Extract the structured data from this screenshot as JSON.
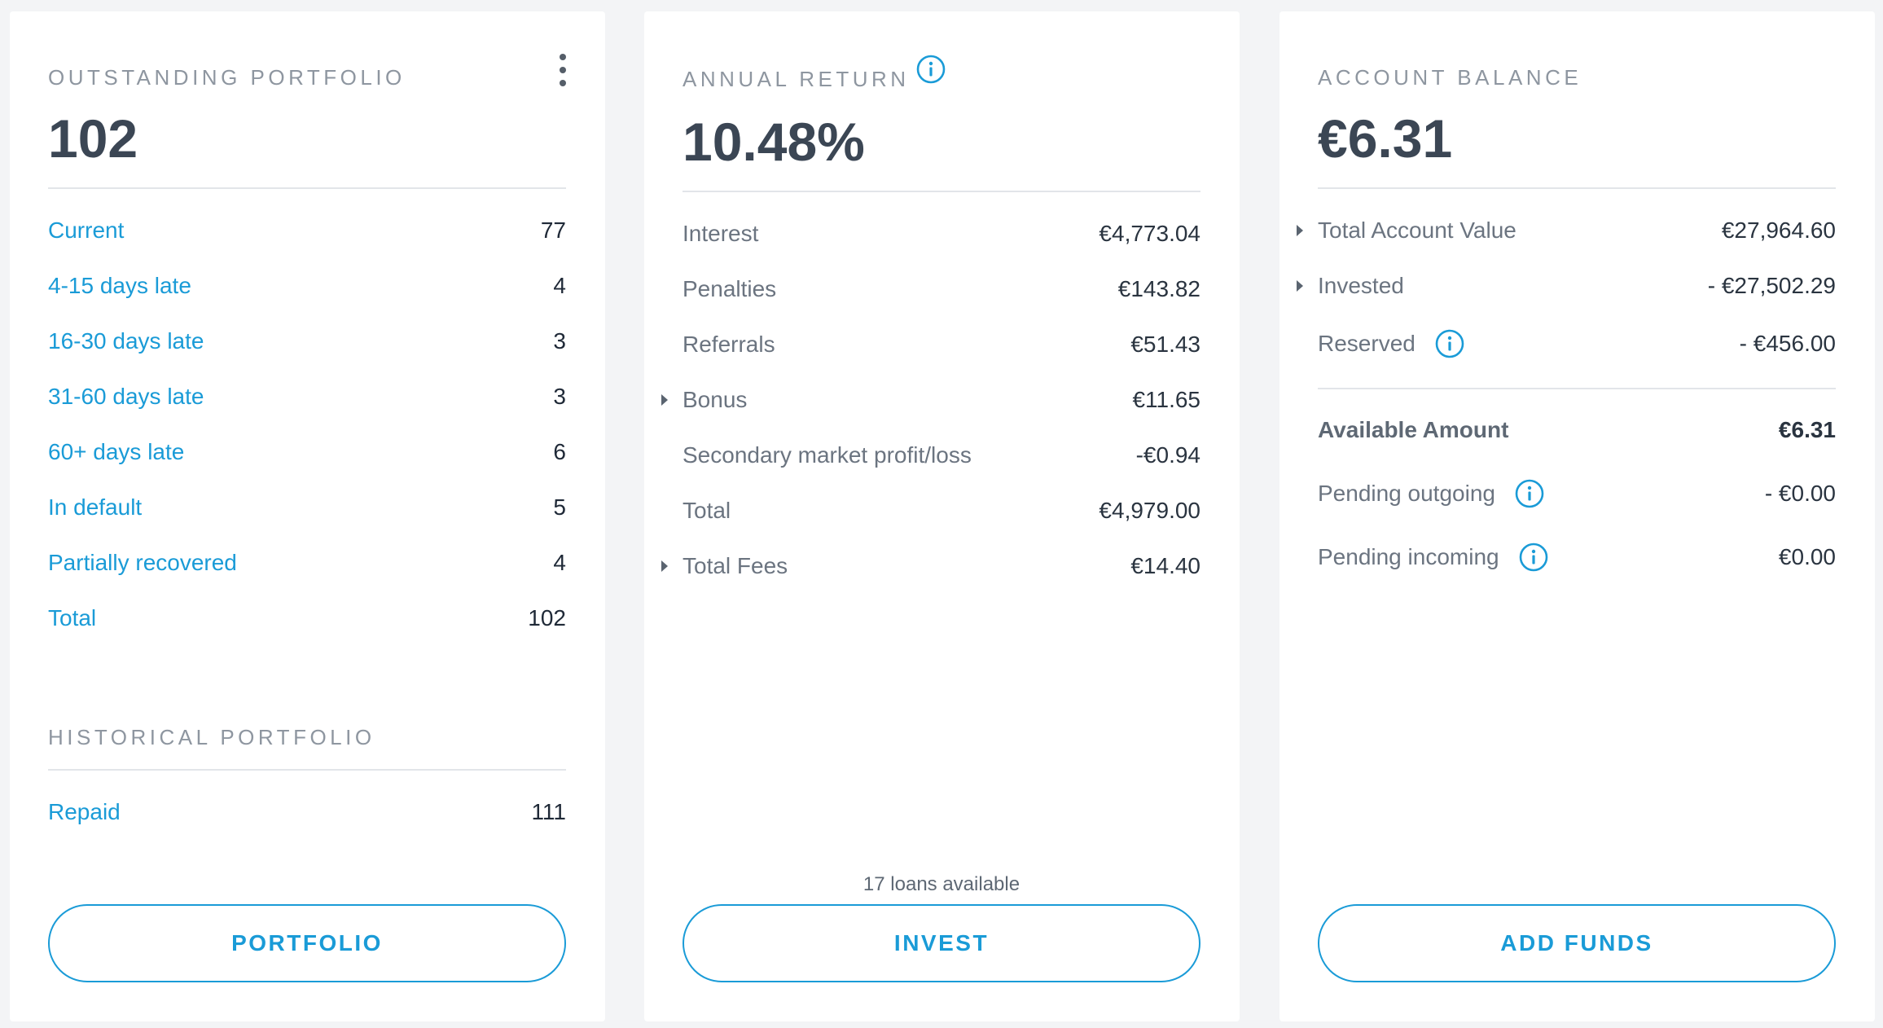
{
  "outstanding": {
    "title": "OUTSTANDING PORTFOLIO",
    "value": "102",
    "rows": [
      {
        "label": "Current",
        "value": "77"
      },
      {
        "label": "4-15 days late",
        "value": "4"
      },
      {
        "label": "16-30 days late",
        "value": "3"
      },
      {
        "label": "31-60 days late",
        "value": "3"
      },
      {
        "label": "60+ days late",
        "value": "6"
      },
      {
        "label": "In default",
        "value": "5"
      },
      {
        "label": "Partially recovered",
        "value": "4"
      },
      {
        "label": "Total",
        "value": "102"
      }
    ],
    "historical_title": "HISTORICAL PORTFOLIO",
    "historical_rows": [
      {
        "label": "Repaid",
        "value": "111"
      }
    ],
    "button_label": "PORTFOLIO"
  },
  "annual_return": {
    "title": "ANNUAL RETURN",
    "value": "10.48%",
    "rows": [
      {
        "label": "Interest",
        "value": "€4,773.04"
      },
      {
        "label": "Penalties",
        "value": "€143.82"
      },
      {
        "label": "Referrals",
        "value": "€51.43"
      },
      {
        "label": "Bonus",
        "value": "€11.65"
      },
      {
        "label": "Secondary market profit/loss",
        "value": "-€0.94"
      },
      {
        "label": "Total",
        "value": "€4,979.00"
      },
      {
        "label": "Total Fees",
        "value": "€14.40"
      }
    ],
    "loans_note": "17 loans available",
    "button_label": "INVEST"
  },
  "account_balance": {
    "title": "ACCOUNT BALANCE",
    "value": "€6.31",
    "rows": [
      {
        "label": "Total Account Value",
        "value": "€27,964.60"
      },
      {
        "label": "Invested",
        "value": "- €27,502.29"
      },
      {
        "label": "Reserved",
        "value": "- €456.00"
      }
    ],
    "available": {
      "label": "Available Amount",
      "value": "€6.31"
    },
    "pending_outgoing": {
      "label": "Pending outgoing",
      "value": "- €0.00"
    },
    "pending_incoming": {
      "label": "Pending incoming",
      "value": "€0.00"
    },
    "button_label": "ADD FUNDS"
  },
  "colors": {
    "accent": "#1a9bd7",
    "background": "#f3f4f6",
    "card": "#ffffff",
    "muted_text": "#8e96a0"
  },
  "icons": [
    "more-vertical-icon",
    "info-icon",
    "caret-right-icon"
  ]
}
